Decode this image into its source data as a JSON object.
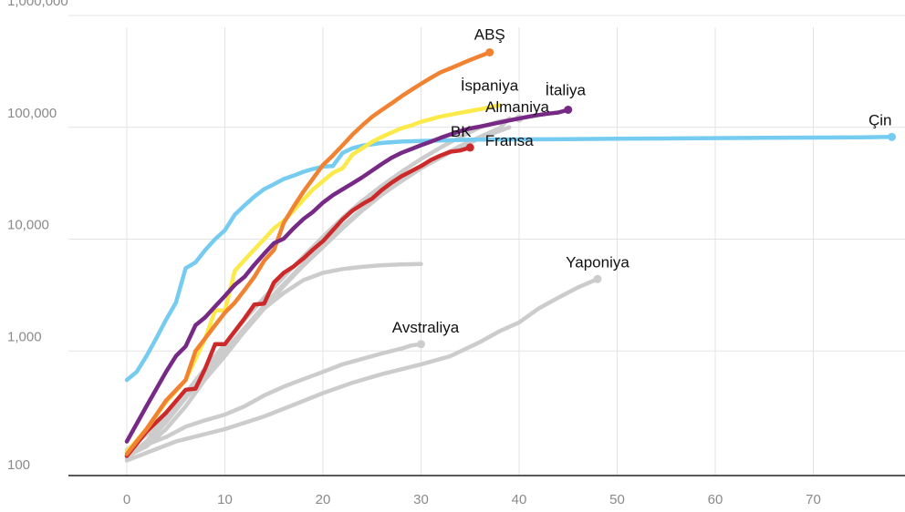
{
  "chart_data": {
    "type": "line",
    "title": "",
    "xlabel": "",
    "ylabel": "",
    "xlim": [
      -7,
      79
    ],
    "ylim": [
      100,
      1000000
    ],
    "y_scale": "log",
    "x_ticks": [
      "0",
      "10",
      "20",
      "30",
      "40",
      "50",
      "60",
      "70"
    ],
    "y_ticks": [
      "100",
      "1,000",
      "10,000",
      "100,000",
      "1,000,000"
    ],
    "grid": true,
    "series": [
      {
        "name": "Avstraliya",
        "color": "#cccccc",
        "end_marker": true,
        "points": [
          [
            0,
            120
          ],
          [
            2,
            145
          ],
          [
            4,
            170
          ],
          [
            6,
            210
          ],
          [
            8,
            240
          ],
          [
            10,
            270
          ],
          [
            12,
            320
          ],
          [
            14,
            400
          ],
          [
            16,
            480
          ],
          [
            18,
            560
          ],
          [
            20,
            650
          ],
          [
            22,
            760
          ],
          [
            24,
            850
          ],
          [
            26,
            950
          ],
          [
            28,
            1050
          ],
          [
            29,
            1120
          ],
          [
            30,
            1150
          ]
        ]
      },
      {
        "name": "",
        "color": "#cccccc",
        "end_marker": false,
        "points": [
          [
            0,
            115
          ],
          [
            2,
            140
          ],
          [
            4,
            200
          ],
          [
            6,
            320
          ],
          [
            8,
            560
          ],
          [
            10,
            900
          ],
          [
            12,
            1500
          ],
          [
            14,
            2400
          ],
          [
            16,
            3300
          ],
          [
            18,
            4300
          ],
          [
            20,
            5000
          ],
          [
            22,
            5400
          ],
          [
            24,
            5650
          ],
          [
            26,
            5850
          ],
          [
            28,
            5950
          ],
          [
            30,
            6000
          ]
        ]
      },
      {
        "name": "Yaponiya",
        "color": "#cccccc",
        "end_marker": true,
        "points": [
          [
            0,
            105
          ],
          [
            5,
            155
          ],
          [
            10,
            200
          ],
          [
            14,
            260
          ],
          [
            17,
            330
          ],
          [
            20,
            420
          ],
          [
            23,
            520
          ],
          [
            26,
            620
          ],
          [
            30,
            760
          ],
          [
            33,
            900
          ],
          [
            36,
            1200
          ],
          [
            38,
            1500
          ],
          [
            40,
            1800
          ],
          [
            42,
            2400
          ],
          [
            44,
            3000
          ],
          [
            46,
            3700
          ],
          [
            48,
            4400
          ]
        ]
      },
      {
        "name": "",
        "color": "#cccccc",
        "end_marker": false,
        "points": [
          [
            0,
            110
          ],
          [
            2,
            150
          ],
          [
            4,
            230
          ],
          [
            6,
            380
          ],
          [
            8,
            600
          ],
          [
            10,
            950
          ],
          [
            12,
            1500
          ],
          [
            14,
            2400
          ],
          [
            16,
            3800
          ],
          [
            18,
            5800
          ],
          [
            20,
            8500
          ],
          [
            22,
            12500
          ],
          [
            24,
            18000
          ],
          [
            26,
            25000
          ],
          [
            28,
            33000
          ],
          [
            30,
            43000
          ],
          [
            32,
            55000
          ],
          [
            34,
            68000
          ],
          [
            36,
            82000
          ],
          [
            38,
            98000
          ],
          [
            39,
            120000
          ]
        ]
      },
      {
        "name": "Almaniya",
        "color": "#cccccc",
        "end_marker": true,
        "points": [
          [
            0,
            112
          ],
          [
            2,
            155
          ],
          [
            4,
            250
          ],
          [
            6,
            420
          ],
          [
            8,
            700
          ],
          [
            10,
            1150
          ],
          [
            12,
            1900
          ],
          [
            14,
            3000
          ],
          [
            16,
            4600
          ],
          [
            18,
            7000
          ],
          [
            20,
            10500
          ],
          [
            22,
            15500
          ],
          [
            24,
            22000
          ],
          [
            26,
            30000
          ],
          [
            28,
            40000
          ],
          [
            30,
            52000
          ],
          [
            32,
            66000
          ],
          [
            34,
            82000
          ],
          [
            36,
            100000
          ],
          [
            38,
            113000
          ],
          [
            40,
            120000
          ]
        ]
      },
      {
        "name": "Fransa",
        "color": "#cccccc",
        "end_marker": false,
        "points": [
          [
            0,
            130
          ],
          [
            3,
            210
          ],
          [
            6,
            400
          ],
          [
            9,
            800
          ],
          [
            12,
            1600
          ],
          [
            15,
            3200
          ],
          [
            18,
            6000
          ],
          [
            21,
            11000
          ],
          [
            24,
            18500
          ],
          [
            27,
            29000
          ],
          [
            30,
            43000
          ],
          [
            33,
            60000
          ],
          [
            36,
            80000
          ],
          [
            39,
            100000
          ]
        ]
      },
      {
        "name": "Çin",
        "color": "#75ccf0",
        "end_marker": true,
        "points": [
          [
            0,
            550
          ],
          [
            1,
            650
          ],
          [
            2,
            900
          ],
          [
            3,
            1300
          ],
          [
            4,
            1900
          ],
          [
            5,
            2700
          ],
          [
            6,
            5500
          ],
          [
            7,
            6200
          ],
          [
            8,
            8000
          ],
          [
            9,
            10000
          ],
          [
            10,
            12000
          ],
          [
            11,
            16500
          ],
          [
            12,
            20000
          ],
          [
            13,
            24000
          ],
          [
            14,
            28000
          ],
          [
            15,
            31000
          ],
          [
            16,
            34500
          ],
          [
            17,
            37000
          ],
          [
            18,
            40000
          ],
          [
            19,
            42500
          ],
          [
            20,
            44500
          ],
          [
            21,
            45000
          ],
          [
            22,
            59000
          ],
          [
            23,
            65000
          ],
          [
            24,
            68500
          ],
          [
            25,
            70500
          ],
          [
            26,
            72500
          ],
          [
            28,
            74500
          ],
          [
            30,
            75500
          ],
          [
            35,
            77500
          ],
          [
            40,
            78000
          ],
          [
            45,
            78500
          ],
          [
            50,
            79000
          ],
          [
            55,
            79500
          ],
          [
            60,
            80000
          ],
          [
            65,
            80500
          ],
          [
            70,
            81000
          ],
          [
            75,
            81500
          ],
          [
            78,
            82000
          ]
        ]
      },
      {
        "name": "BK",
        "color": "#cc2a2a",
        "end_marker": true,
        "points": [
          [
            0,
            115
          ],
          [
            2,
            190
          ],
          [
            4,
            280
          ],
          [
            6,
            450
          ],
          [
            7,
            460
          ],
          [
            8,
            700
          ],
          [
            9,
            1150
          ],
          [
            10,
            1150
          ],
          [
            11,
            1500
          ],
          [
            12,
            1950
          ],
          [
            13,
            2600
          ],
          [
            14,
            2650
          ],
          [
            15,
            4100
          ],
          [
            16,
            5000
          ],
          [
            17,
            5700
          ],
          [
            18,
            6700
          ],
          [
            19,
            8100
          ],
          [
            20,
            9600
          ],
          [
            21,
            12000
          ],
          [
            22,
            15000
          ],
          [
            23,
            18000
          ],
          [
            24,
            20500
          ],
          [
            25,
            23000
          ],
          [
            26,
            27500
          ],
          [
            27,
            32000
          ],
          [
            28,
            36500
          ],
          [
            29,
            40500
          ],
          [
            30,
            45000
          ],
          [
            31,
            51000
          ],
          [
            32,
            56000
          ],
          [
            33,
            60500
          ],
          [
            34,
            62000
          ],
          [
            35,
            66000
          ]
        ]
      },
      {
        "name": "İspaniya",
        "color": "#fcea4a",
        "end_marker": false,
        "points": [
          [
            0,
            125
          ],
          [
            2,
            200
          ],
          [
            4,
            350
          ],
          [
            6,
            550
          ],
          [
            8,
            1300
          ],
          [
            9,
            2300
          ],
          [
            10,
            2300
          ],
          [
            11,
            5200
          ],
          [
            12,
            6500
          ],
          [
            13,
            8100
          ],
          [
            14,
            10000
          ],
          [
            15,
            12500
          ],
          [
            16,
            14500
          ],
          [
            17,
            18000
          ],
          [
            18,
            22500
          ],
          [
            19,
            28000
          ],
          [
            20,
            33000
          ],
          [
            21,
            39000
          ],
          [
            22,
            43000
          ],
          [
            23,
            57000
          ],
          [
            24,
            65000
          ],
          [
            25,
            74000
          ],
          [
            26,
            82000
          ],
          [
            27,
            90000
          ],
          [
            28,
            98000
          ],
          [
            29,
            104000
          ],
          [
            30,
            112000
          ],
          [
            32,
            125000
          ],
          [
            34,
            135000
          ],
          [
            36,
            145000
          ],
          [
            38,
            158000
          ]
        ]
      },
      {
        "name": "ABŞ",
        "color": "#f08232",
        "end_marker": true,
        "points": [
          [
            0,
            120
          ],
          [
            2,
            200
          ],
          [
            4,
            360
          ],
          [
            6,
            550
          ],
          [
            7,
            1000
          ],
          [
            8,
            1300
          ],
          [
            9,
            1700
          ],
          [
            10,
            2200
          ],
          [
            11,
            2700
          ],
          [
            12,
            3500
          ],
          [
            13,
            4600
          ],
          [
            14,
            6400
          ],
          [
            15,
            8000
          ],
          [
            16,
            14000
          ],
          [
            17,
            19500
          ],
          [
            18,
            26500
          ],
          [
            19,
            35000
          ],
          [
            20,
            46000
          ],
          [
            21,
            56000
          ],
          [
            22,
            69000
          ],
          [
            23,
            86000
          ],
          [
            24,
            104000
          ],
          [
            25,
            124000
          ],
          [
            26,
            143000
          ],
          [
            27,
            164000
          ],
          [
            28,
            189000
          ],
          [
            29,
            216000
          ],
          [
            30,
            245000
          ],
          [
            31,
            277000
          ],
          [
            32,
            311000
          ],
          [
            33,
            337000
          ],
          [
            34,
            367000
          ],
          [
            35,
            400000
          ],
          [
            36,
            433000
          ],
          [
            37,
            468000
          ]
        ]
      },
      {
        "name": "İtaliya",
        "color": "#772a85",
        "end_marker": true,
        "points": [
          [
            0,
            155
          ],
          [
            2,
            320
          ],
          [
            4,
            650
          ],
          [
            5,
            900
          ],
          [
            6,
            1100
          ],
          [
            7,
            1700
          ],
          [
            8,
            2000
          ],
          [
            9,
            2500
          ],
          [
            10,
            3100
          ],
          [
            11,
            3900
          ],
          [
            12,
            4600
          ],
          [
            13,
            5900
          ],
          [
            14,
            7400
          ],
          [
            15,
            9200
          ],
          [
            16,
            10100
          ],
          [
            17,
            12500
          ],
          [
            18,
            15100
          ],
          [
            19,
            17600
          ],
          [
            20,
            21200
          ],
          [
            21,
            24700
          ],
          [
            22,
            27900
          ],
          [
            23,
            31500
          ],
          [
            24,
            35700
          ],
          [
            25,
            41000
          ],
          [
            26,
            47000
          ],
          [
            27,
            53500
          ],
          [
            28,
            59100
          ],
          [
            29,
            63900
          ],
          [
            30,
            69200
          ],
          [
            31,
            74400
          ],
          [
            32,
            80500
          ],
          [
            33,
            86500
          ],
          [
            34,
            92500
          ],
          [
            35,
            97700
          ],
          [
            36,
            101700
          ],
          [
            37,
            105800
          ],
          [
            38,
            110600
          ],
          [
            39,
            115200
          ],
          [
            40,
            119800
          ],
          [
            41,
            124600
          ],
          [
            42,
            128900
          ],
          [
            43,
            132500
          ],
          [
            44,
            135600
          ],
          [
            45,
            143600
          ]
        ]
      }
    ],
    "labels": [
      {
        "text": "ABŞ",
        "series": "ABŞ"
      },
      {
        "text": "İspaniya",
        "series": "İspaniya"
      },
      {
        "text": "İtaliya",
        "series": "İtaliya"
      },
      {
        "text": "Almaniya",
        "series": "Almaniya"
      },
      {
        "text": "Fransa",
        "series": "Fransa"
      },
      {
        "text": "BK",
        "series": "BK"
      },
      {
        "text": "Çin",
        "series": "Çin"
      },
      {
        "text": "Avstraliya",
        "series": "Avstraliya"
      },
      {
        "text": "Yaponiya",
        "series": "Yaponiya"
      }
    ]
  }
}
